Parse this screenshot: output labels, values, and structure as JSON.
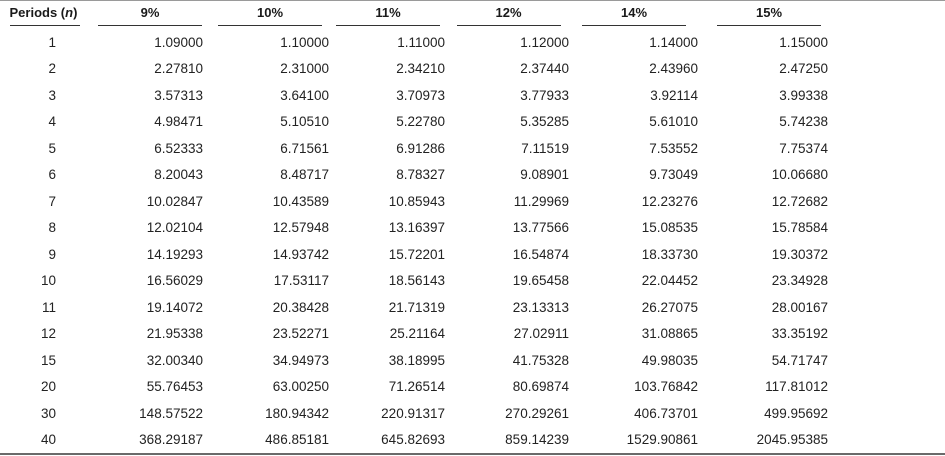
{
  "table": {
    "header": {
      "periods_label": "Periods (",
      "periods_var": "n",
      "periods_close": ")",
      "rates": [
        "9%",
        "10%",
        "11%",
        "12%",
        "14%",
        "15%"
      ]
    },
    "rows": [
      {
        "period": "1",
        "values": [
          "1.09000",
          "1.10000",
          "1.11000",
          "1.12000",
          "1.14000",
          "1.15000"
        ]
      },
      {
        "period": "2",
        "values": [
          "2.27810",
          "2.31000",
          "2.34210",
          "2.37440",
          "2.43960",
          "2.47250"
        ]
      },
      {
        "period": "3",
        "values": [
          "3.57313",
          "3.64100",
          "3.70973",
          "3.77933",
          "3.92114",
          "3.99338"
        ]
      },
      {
        "period": "4",
        "values": [
          "4.98471",
          "5.10510",
          "5.22780",
          "5.35285",
          "5.61010",
          "5.74238"
        ]
      },
      {
        "period": "5",
        "values": [
          "6.52333",
          "6.71561",
          "6.91286",
          "7.11519",
          "7.53552",
          "7.75374"
        ]
      },
      {
        "period": "6",
        "values": [
          "8.20043",
          "8.48717",
          "8.78327",
          "9.08901",
          "9.73049",
          "10.06680"
        ]
      },
      {
        "period": "7",
        "values": [
          "10.02847",
          "10.43589",
          "10.85943",
          "11.29969",
          "12.23276",
          "12.72682"
        ]
      },
      {
        "period": "8",
        "values": [
          "12.02104",
          "12.57948",
          "13.16397",
          "13.77566",
          "15.08535",
          "15.78584"
        ]
      },
      {
        "period": "9",
        "values": [
          "14.19293",
          "14.93742",
          "15.72201",
          "16.54874",
          "18.33730",
          "19.30372"
        ]
      },
      {
        "period": "10",
        "values": [
          "16.56029",
          "17.53117",
          "18.56143",
          "19.65458",
          "22.04452",
          "23.34928"
        ]
      },
      {
        "period": "11",
        "values": [
          "19.14072",
          "20.38428",
          "21.71319",
          "23.13313",
          "26.27075",
          "28.00167"
        ]
      },
      {
        "period": "12",
        "values": [
          "21.95338",
          "23.52271",
          "25.21164",
          "27.02911",
          "31.08865",
          "33.35192"
        ]
      },
      {
        "period": "15",
        "values": [
          "32.00340",
          "34.94973",
          "38.18995",
          "41.75328",
          "49.98035",
          "54.71747"
        ]
      },
      {
        "period": "20",
        "values": [
          "55.76453",
          "63.00250",
          "71.26514",
          "80.69874",
          "103.76842",
          "117.81012"
        ]
      },
      {
        "period": "30",
        "values": [
          "148.57522",
          "180.94342",
          "220.91317",
          "270.29261",
          "406.73701",
          "499.95692"
        ]
      },
      {
        "period": "40",
        "values": [
          "368.29187",
          "486.85181",
          "645.82693",
          "859.14239",
          "1529.90861",
          "2045.95385"
        ]
      }
    ]
  }
}
